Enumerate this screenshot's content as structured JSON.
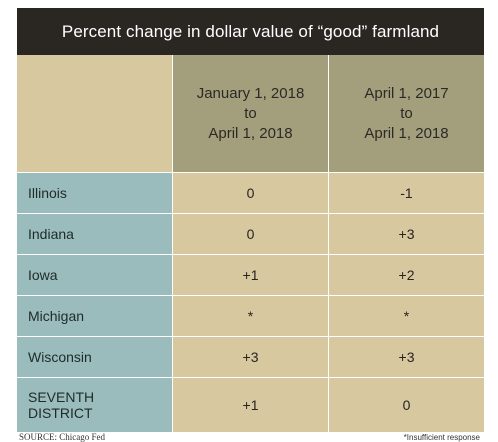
{
  "title": "Percent change in dollar value of “good” farmland",
  "columns": [
    {
      "line1": "January 1, 2018",
      "line2": "to",
      "line3": "April 1, 2018"
    },
    {
      "line1": "April 1, 2017",
      "line2": "to",
      "line3": "April 1, 2018"
    }
  ],
  "rows": [
    {
      "label_line1": "Illinois",
      "label_line2": "",
      "values": [
        "0",
        "-1"
      ]
    },
    {
      "label_line1": "Indiana",
      "label_line2": "",
      "values": [
        "0",
        "+3"
      ]
    },
    {
      "label_line1": "Iowa",
      "label_line2": "",
      "values": [
        "+1",
        "+2"
      ]
    },
    {
      "label_line1": "Michigan",
      "label_line2": "",
      "values": [
        "*",
        "*"
      ]
    },
    {
      "label_line1": "Wisconsin",
      "label_line2": "",
      "values": [
        "+3",
        "+3"
      ]
    },
    {
      "label_line1": "SEVENTH",
      "label_line2": "DISTRICT",
      "values": [
        "+1",
        "0"
      ]
    }
  ],
  "footer": {
    "source": "SOURCE: Chicago Fed",
    "note": "*Insufficient response"
  },
  "colors": {
    "title_bg": "#2a2622",
    "header_bg": "#a39f7c",
    "label_bg": "#9bbcbc",
    "cell_bg": "#d7c8a0"
  }
}
